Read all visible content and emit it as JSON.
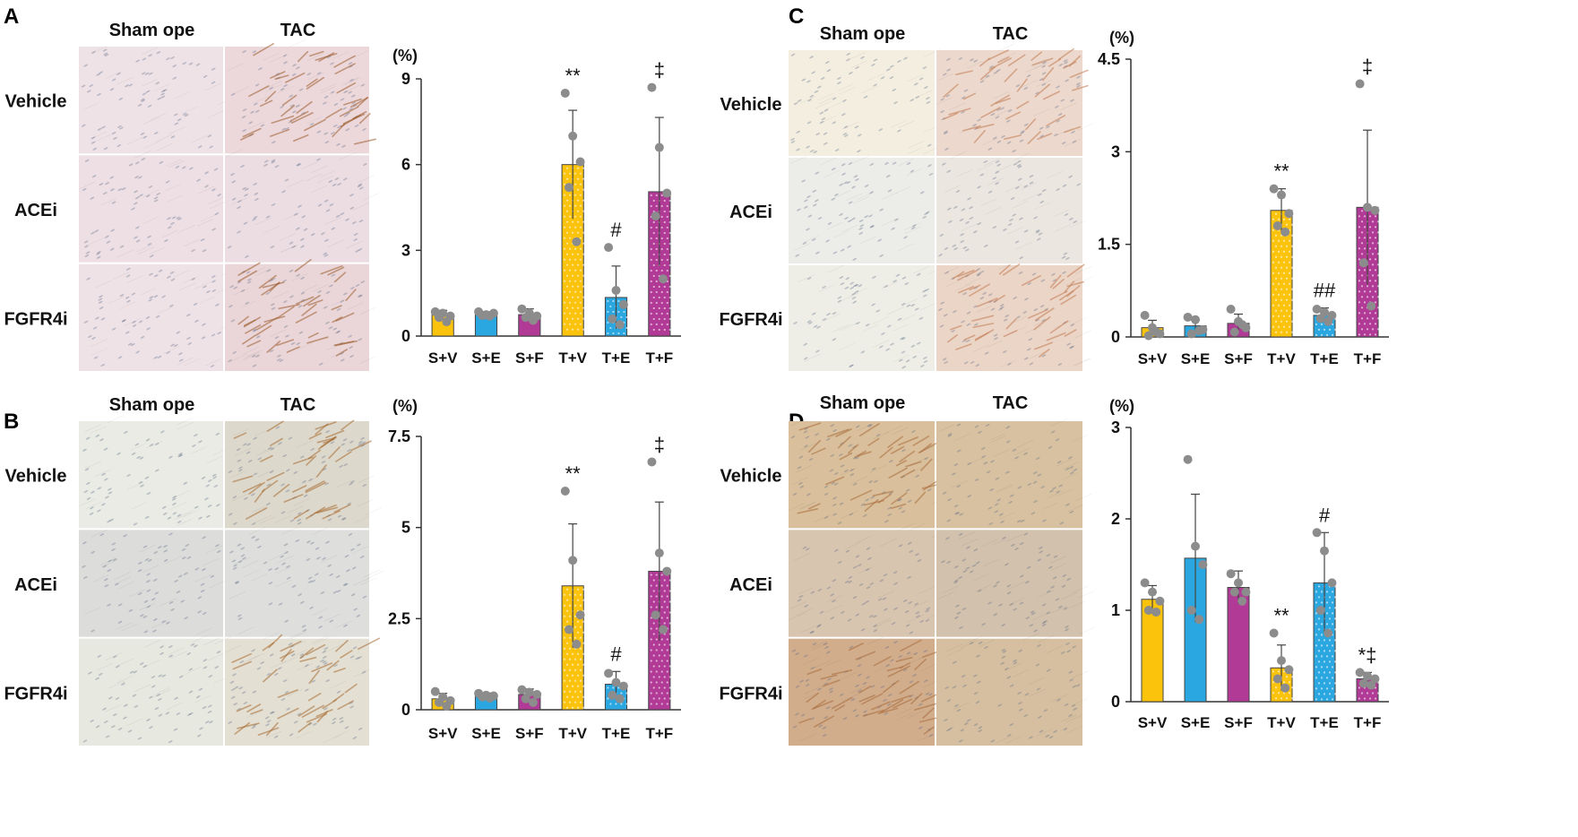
{
  "panels": [
    {
      "letter": "A",
      "columns": [
        "Sham ope",
        "TAC"
      ],
      "rows": [
        "Vehicle",
        "ACEi",
        "FGFR4i"
      ],
      "tiles": [
        [
          "#efe2e6",
          "#ecd8da"
        ],
        [
          "#eddfe3",
          "#ebdde2"
        ],
        [
          "#efe2e6",
          "#ead6d8"
        ]
      ],
      "stains": [
        [
          false,
          true
        ],
        [
          false,
          false
        ],
        [
          false,
          true
        ]
      ],
      "stain_color": "#9b5a2a"
    },
    {
      "letter": "B",
      "columns": [
        "Sham ope",
        "TAC"
      ],
      "rows": [
        "Vehicle",
        "ACEi",
        "FGFR4i"
      ],
      "tiles": [
        [
          "#e9ebe4",
          "#ddd8cc"
        ],
        [
          "#dcdcda",
          "#dededc"
        ],
        [
          "#e7e8df",
          "#e3dfd3"
        ]
      ],
      "stains": [
        [
          false,
          true
        ],
        [
          false,
          false
        ],
        [
          false,
          true
        ]
      ],
      "stain_color": "#a66a2e"
    },
    {
      "letter": "C",
      "columns": [
        "Sham ope",
        "TAC"
      ],
      "rows": [
        "Vehicle",
        "ACEi",
        "FGFR4i"
      ],
      "tiles": [
        [
          "#f3eee0",
          "#ecd8cc"
        ],
        [
          "#ecece8",
          "#ebe6e0"
        ],
        [
          "#eeeee6",
          "#ebd5c6"
        ]
      ],
      "stains": [
        [
          false,
          true
        ],
        [
          false,
          false
        ],
        [
          false,
          true
        ]
      ],
      "stain_color": "#c27a52"
    },
    {
      "letter": "D",
      "columns": [
        "Sham ope",
        "TAC"
      ],
      "rows": [
        "Vehicle",
        "ACEi",
        "FGFR4i"
      ],
      "tiles": [
        [
          "#d9bf9b",
          "#d7c1a0"
        ],
        [
          "#d8c5b0",
          "#d2c1ac"
        ],
        [
          "#d1ad8c",
          "#d5bfa0"
        ]
      ],
      "stains": [
        [
          true,
          false
        ],
        [
          false,
          false
        ],
        [
          true,
          false
        ]
      ],
      "stain_color": "#a86a3a"
    }
  ],
  "chart_data": [
    {
      "panel": "A",
      "type": "bar",
      "unit": "(%)",
      "categories": [
        "S+V",
        "S+E",
        "S+F",
        "T+V",
        "T+E",
        "T+F"
      ],
      "values": [
        0.75,
        0.75,
        0.75,
        6.0,
        1.35,
        5.05
      ],
      "errors": [
        0.15,
        0.1,
        0.2,
        1.9,
        1.1,
        2.6
      ],
      "points": [
        [
          0.85,
          0.8,
          0.7,
          0.65,
          0.5
        ],
        [
          0.85,
          0.75,
          0.8,
          0.72,
          0.7
        ],
        [
          0.95,
          0.8,
          0.7,
          0.65,
          0.55
        ],
        [
          8.5,
          7.0,
          6.1,
          5.2,
          3.3
        ],
        [
          3.1,
          1.6,
          1.1,
          0.6,
          0.4
        ],
        [
          8.7,
          6.6,
          5.0,
          4.2,
          2.0
        ]
      ],
      "ylim": [
        0,
        9
      ],
      "yticks": [
        "0",
        "3",
        "6",
        "9"
      ],
      "annotations": [
        "",
        "",
        "",
        "**",
        "#",
        "‡"
      ]
    },
    {
      "panel": "B",
      "type": "bar",
      "unit": "(%)",
      "categories": [
        "S+V",
        "S+E",
        "S+F",
        "T+V",
        "T+E",
        "T+F"
      ],
      "values": [
        0.3,
        0.38,
        0.42,
        3.4,
        0.7,
        3.8
      ],
      "errors": [
        0.15,
        0.08,
        0.15,
        1.7,
        0.35,
        1.9
      ],
      "points": [
        [
          0.5,
          0.35,
          0.25,
          0.2,
          0.1
        ],
        [
          0.45,
          0.4,
          0.38,
          0.35,
          0.32
        ],
        [
          0.55,
          0.48,
          0.42,
          0.3,
          0.2
        ],
        [
          6.0,
          4.1,
          2.6,
          2.2,
          1.8
        ],
        [
          1.0,
          0.75,
          0.65,
          0.4,
          0.3
        ],
        [
          6.8,
          4.3,
          3.8,
          2.6,
          2.2
        ]
      ],
      "ylim": [
        0,
        7.5
      ],
      "yticks": [
        "0",
        "2.5",
        "5",
        "7.5"
      ],
      "annotations": [
        "",
        "",
        "",
        "**",
        "#",
        "‡"
      ]
    },
    {
      "panel": "C",
      "type": "bar",
      "unit": "(%)",
      "categories": [
        "S+V",
        "S+E",
        "S+F",
        "T+V",
        "T+E",
        "T+F"
      ],
      "values": [
        0.15,
        0.18,
        0.22,
        2.05,
        0.35,
        2.1
      ],
      "errors": [
        0.12,
        0.1,
        0.15,
        0.35,
        0.12,
        1.25
      ],
      "points": [
        [
          0.35,
          0.15,
          0.05,
          0.02,
          0.08
        ],
        [
          0.32,
          0.28,
          0.12,
          0.05,
          0.1
        ],
        [
          0.45,
          0.25,
          0.15,
          0.08,
          0.2
        ],
        [
          2.4,
          2.3,
          2.0,
          1.8,
          1.7
        ],
        [
          0.45,
          0.4,
          0.35,
          0.3,
          0.25
        ],
        [
          4.1,
          2.1,
          2.05,
          1.2,
          0.5
        ]
      ],
      "ylim": [
        0,
        4.5
      ],
      "yticks": [
        "0",
        "1.5",
        "3",
        "4.5"
      ],
      "annotations": [
        "",
        "",
        "",
        "**",
        "##",
        "‡"
      ]
    },
    {
      "panel": "D",
      "type": "bar",
      "unit": "(%)",
      "categories": [
        "S+V",
        "S+E",
        "S+F",
        "T+V",
        "T+E",
        "T+F"
      ],
      "values": [
        1.12,
        1.57,
        1.25,
        0.37,
        1.3,
        0.25
      ],
      "errors": [
        0.15,
        0.7,
        0.18,
        0.25,
        0.55,
        0.07
      ],
      "points": [
        [
          1.3,
          1.2,
          1.1,
          1.0,
          0.98
        ],
        [
          2.65,
          1.7,
          1.5,
          1.0,
          0.9
        ],
        [
          1.4,
          1.3,
          1.2,
          1.2,
          1.1
        ],
        [
          0.75,
          0.45,
          0.35,
          0.25,
          0.15
        ],
        [
          1.85,
          1.65,
          1.3,
          1.0,
          0.75
        ],
        [
          0.32,
          0.28,
          0.25,
          0.2,
          0.18
        ]
      ],
      "ylim": [
        0,
        3
      ],
      "yticks": [
        "0",
        "1",
        "2",
        "3"
      ],
      "annotations": [
        "",
        "",
        "",
        "**",
        "#",
        "*‡"
      ]
    }
  ],
  "bar_colors": [
    "#fcc30d",
    "#2aa7e0",
    "#b13a96",
    "#fcc30d",
    "#2aa7e0",
    "#b13a96"
  ],
  "point_color": "#8c8c8c"
}
